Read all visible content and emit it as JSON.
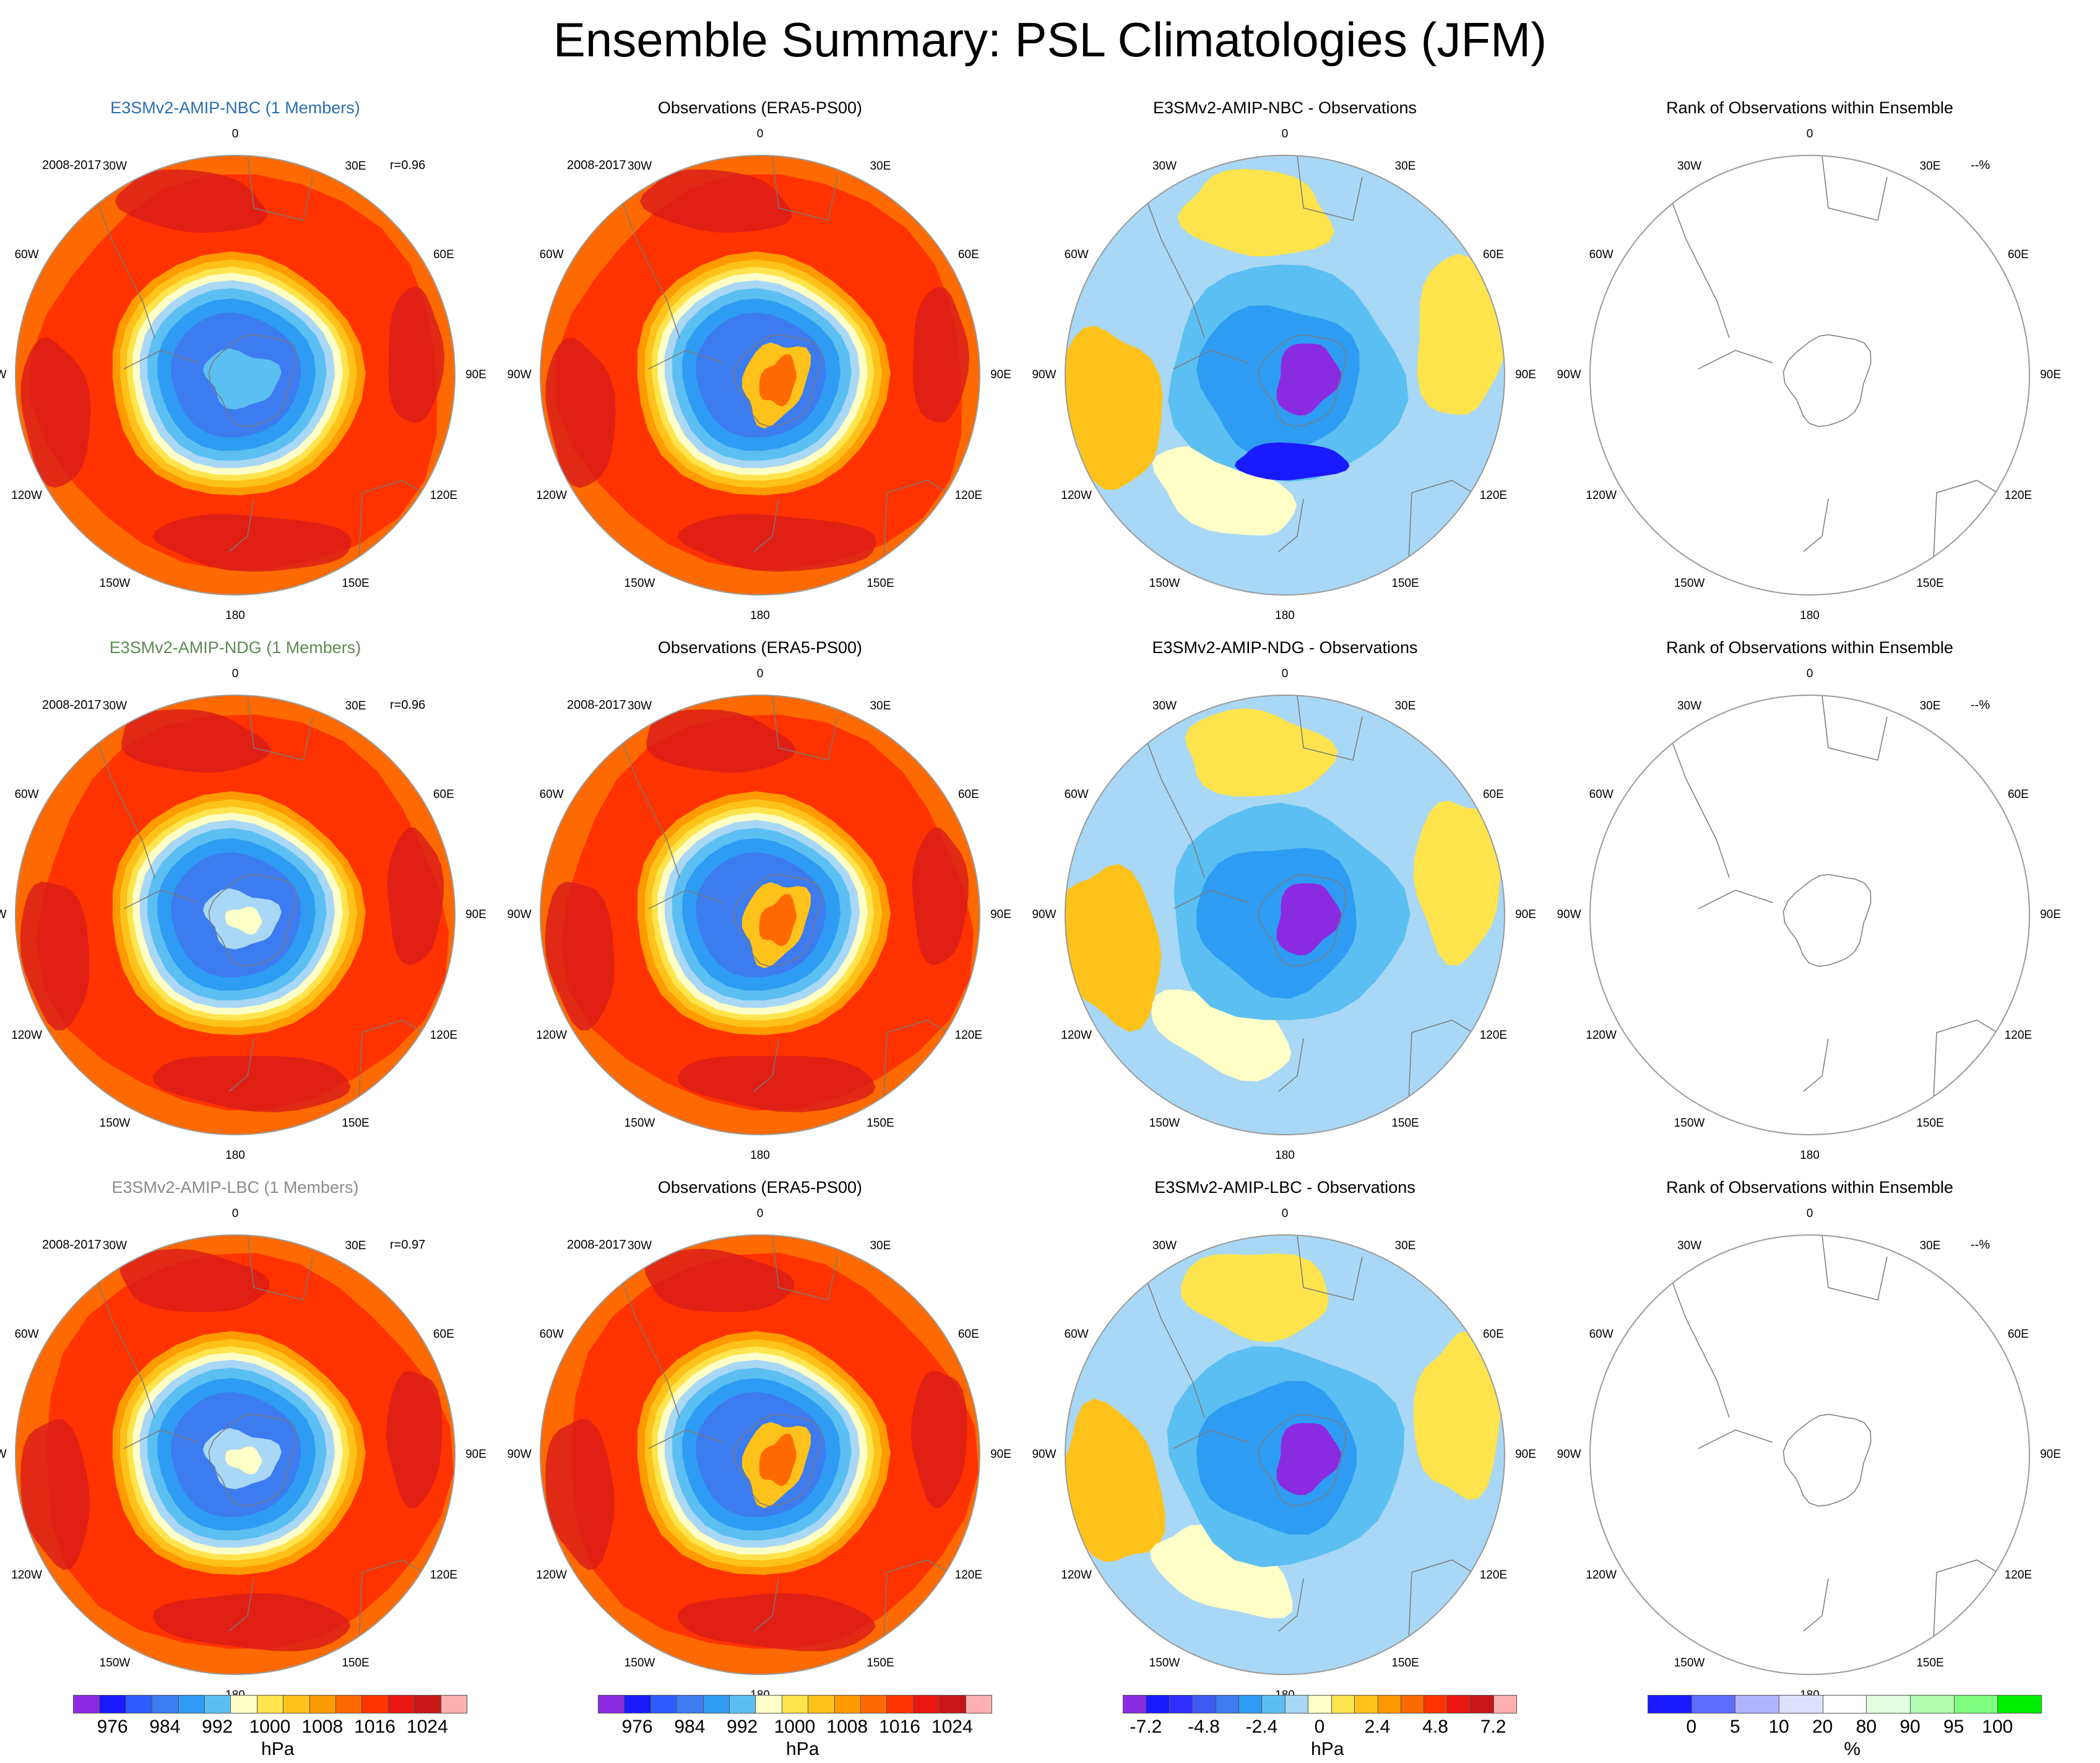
{
  "title": "Ensemble Summary: PSL Climatologies (JFM)",
  "lon_labels": [
    "0",
    "30E",
    "60E",
    "90E",
    "120E",
    "150E",
    "180",
    "150W",
    "120W",
    "90W",
    "60W",
    "30W"
  ],
  "rows": [
    {
      "model": "E3SMv2-AMIP-NBC (1 Members)",
      "model_color": "#2a6db0",
      "period": "2008-2017",
      "r": "r=0.96",
      "obs_title": "Observations (ERA5-PS00)",
      "obs_period": "2008-2017",
      "diff_title": "E3SMv2-AMIP-NBC - Observations",
      "rank_title": "Rank of Observations within Ensemble",
      "rank_pct": "--%"
    },
    {
      "model": "E3SMv2-AMIP-NDG (1 Members)",
      "model_color": "#5f8a55",
      "period": "2008-2017",
      "r": "r=0.96",
      "obs_title": "Observations (ERA5-PS00)",
      "obs_period": "2008-2017",
      "diff_title": "E3SMv2-AMIP-NDG - Observations",
      "rank_title": "Rank of Observations within Ensemble",
      "rank_pct": "--%"
    },
    {
      "model": "E3SMv2-AMIP-LBC (1 Members)",
      "model_color": "#8a8a8a",
      "period": "2008-2017",
      "r": "r=0.97",
      "obs_title": "Observations (ERA5-PS00)",
      "obs_period": "2008-2017",
      "diff_title": "E3SMv2-AMIP-LBC - Observations",
      "rank_title": "Rank of Observations within Ensemble",
      "rank_pct": "--%"
    }
  ],
  "colorbars": [
    {
      "units": "hPa",
      "colors": [
        "#8a2be2",
        "#1a1aff",
        "#2e5bff",
        "#3d7bf0",
        "#2e9cf2",
        "#5cbff2",
        "#ffffc8",
        "#ffe44d",
        "#ffc21a",
        "#ff9a00",
        "#ff6a00",
        "#ff3300",
        "#e8160f",
        "#c81515",
        "#ffb0b0"
      ],
      "ticks": [
        "976",
        "984",
        "992",
        "1000",
        "1008",
        "1016",
        "1024"
      ]
    },
    {
      "units": "hPa",
      "colors": [
        "#8a2be2",
        "#1a1aff",
        "#2e5bff",
        "#3d7bf0",
        "#2e9cf2",
        "#5cbff2",
        "#ffffc8",
        "#ffe44d",
        "#ffc21a",
        "#ff9a00",
        "#ff6a00",
        "#ff3300",
        "#e8160f",
        "#c81515",
        "#ffb0b0"
      ],
      "ticks": [
        "976",
        "984",
        "992",
        "1000",
        "1008",
        "1016",
        "1024"
      ]
    },
    {
      "units": "hPa",
      "colors": [
        "#8a2be2",
        "#1a1aff",
        "#2e2eff",
        "#3d5bf0",
        "#3d7bf0",
        "#2e9cf2",
        "#5cbff2",
        "#a8d8f5",
        "#ffffc8",
        "#ffe44d",
        "#ffc21a",
        "#ff9a00",
        "#ff6a00",
        "#ff3300",
        "#e8160f",
        "#c81515",
        "#ffb0b0"
      ],
      "ticks": [
        "-7.2",
        "-4.8",
        "-2.4",
        "0",
        "2.4",
        "4.8",
        "7.2"
      ]
    },
    {
      "units": "%",
      "colors": [
        "#1a1aff",
        "#5c6cff",
        "#b0b4ff",
        "#dde0ff",
        "#ffffff",
        "#e0ffe0",
        "#b0ffb0",
        "#80ff80",
        "#00ee00"
      ],
      "ticks": [
        "0",
        "5",
        "10",
        "20",
        "80",
        "90",
        "95",
        "100"
      ]
    }
  ],
  "chart_data": [
    {
      "type": "heatmap",
      "title": "Ensemble Summary: PSL Climatologies (JFM)",
      "projection": "polar stereographic, south pole",
      "panels": [
        {
          "row": 1,
          "title": "E3SMv2-AMIP-NBC (1 Members)",
          "period": "2008-2017",
          "r": 0.96,
          "field": "PSL climatology",
          "units": "hPa",
          "range": [
            976,
            1024
          ]
        },
        {
          "row": 1,
          "title": "Observations (ERA5-PS00)",
          "period": "2008-2017",
          "field": "PSL climatology",
          "units": "hPa",
          "range": [
            976,
            1024
          ]
        },
        {
          "row": 1,
          "title": "E3SMv2-AMIP-NBC - Observations",
          "field": "difference",
          "units": "hPa",
          "range": [
            -7.2,
            7.2
          ]
        },
        {
          "row": 1,
          "title": "Rank of Observations within Ensemble",
          "field": "rank",
          "units": "%",
          "value": "--%"
        },
        {
          "row": 2,
          "title": "E3SMv2-AMIP-NDG (1 Members)",
          "period": "2008-2017",
          "r": 0.96,
          "field": "PSL climatology",
          "units": "hPa",
          "range": [
            976,
            1024
          ]
        },
        {
          "row": 2,
          "title": "Observations (ERA5-PS00)",
          "period": "2008-2017",
          "field": "PSL climatology",
          "units": "hPa",
          "range": [
            976,
            1024
          ]
        },
        {
          "row": 2,
          "title": "E3SMv2-AMIP-NDG - Observations",
          "field": "difference",
          "units": "hPa",
          "range": [
            -7.2,
            7.2
          ]
        },
        {
          "row": 2,
          "title": "Rank of Observations within Ensemble",
          "field": "rank",
          "units": "%",
          "value": "--%"
        },
        {
          "row": 3,
          "title": "E3SMv2-AMIP-LBC (1 Members)",
          "period": "2008-2017",
          "r": 0.97,
          "field": "PSL climatology",
          "units": "hPa",
          "range": [
            976,
            1024
          ]
        },
        {
          "row": 3,
          "title": "Observations (ERA5-PS00)",
          "period": "2008-2017",
          "field": "PSL climatology",
          "units": "hPa",
          "range": [
            976,
            1024
          ]
        },
        {
          "row": 3,
          "title": "E3SMv2-AMIP-LBC - Observations",
          "field": "difference",
          "units": "hPa",
          "range": [
            -7.2,
            7.2
          ]
        },
        {
          "row": 3,
          "title": "Rank of Observations within Ensemble",
          "field": "rank",
          "units": "%",
          "value": "--%"
        }
      ]
    }
  ]
}
